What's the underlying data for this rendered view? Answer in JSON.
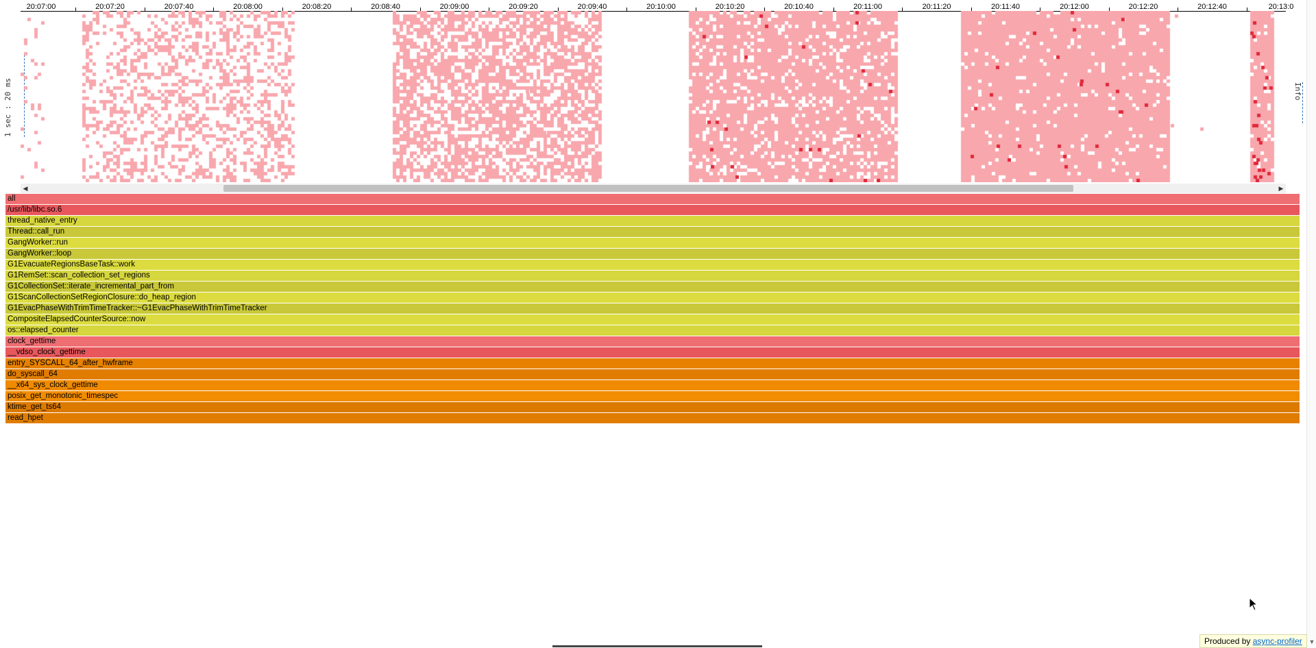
{
  "timeline": {
    "y_axis_label": "1 sec : 20 ms",
    "info_label": "Info",
    "ticks": [
      "20:07:00",
      "20:07:20",
      "20:07:40",
      "20:08:00",
      "20:08:20",
      "20:08:40",
      "20:09:00",
      "20:09:20",
      "20:09:40",
      "20:10:00",
      "20:10:20",
      "20:10:40",
      "20:11:00",
      "20:11:20",
      "20:11:40",
      "20:12:00",
      "20:12:20",
      "20:12:40",
      "20:13:0"
    ],
    "colors": {
      "sample": "#f8a7ad",
      "hot": "#e0283a",
      "axis": "#000000"
    }
  },
  "chart_data": {
    "type": "heatmap",
    "title": "",
    "xlabel": "",
    "ylabel": "1 sec : 20 ms",
    "x_ticks": [
      "20:07:00",
      "20:07:20",
      "20:07:40",
      "20:08:00",
      "20:08:20",
      "20:08:40",
      "20:09:00",
      "20:09:20",
      "20:09:40",
      "20:10:00",
      "20:10:20",
      "20:10:40",
      "20:11:00",
      "20:11:20",
      "20:11:40",
      "20:12:00",
      "20:12:20",
      "20:12:40",
      "20:13:0"
    ],
    "activity_periods": [
      {
        "start": "20:07:00",
        "end": "20:07:06",
        "density": "sparse"
      },
      {
        "start": "20:07:18",
        "end": "20:08:19",
        "density": "medium"
      },
      {
        "start": "20:08:48",
        "end": "20:09:48",
        "density": "dense"
      },
      {
        "start": "20:10:14",
        "end": "20:11:14",
        "density": "very-dense"
      },
      {
        "start": "20:11:33",
        "end": "20:12:33",
        "density": "full"
      },
      {
        "start": "20:12:57",
        "end": "20:13:03",
        "density": "full"
      }
    ]
  },
  "flamegraph": {
    "frames": [
      {
        "name": "all",
        "color": "#ef6e72"
      },
      {
        "name": "/usr/lib/libc.so.6",
        "color": "#e8575c"
      },
      {
        "name": "thread_native_entry",
        "color": "#d6d63e"
      },
      {
        "name": "Thread::call_run",
        "color": "#c8c83a"
      },
      {
        "name": "GangWorker::run",
        "color": "#dcdc40"
      },
      {
        "name": "GangWorker::loop",
        "color": "#c8c83a"
      },
      {
        "name": "G1EvacuateRegionsBaseTask::work",
        "color": "#dcdc40"
      },
      {
        "name": "G1RemSet::scan_collection_set_regions",
        "color": "#d6d63e"
      },
      {
        "name": "G1CollectionSet::iterate_incremental_part_from",
        "color": "#c8c83a"
      },
      {
        "name": "G1ScanCollectionSetRegionClosure::do_heap_region",
        "color": "#dcdc40"
      },
      {
        "name": "G1EvacPhaseWithTrimTimeTracker::~G1EvacPhaseWithTrimTimeTracker",
        "color": "#c8c83a"
      },
      {
        "name": "CompositeElapsedCounterSource::now",
        "color": "#dcdc40"
      },
      {
        "name": "os::elapsed_counter",
        "color": "#d6d63e"
      },
      {
        "name": "clock_gettime",
        "color": "#ef6e72"
      },
      {
        "name": "__vdso_clock_gettime",
        "color": "#e8575c"
      },
      {
        "name": "entry_SYSCALL_64_after_hwframe",
        "color": "#e68200"
      },
      {
        "name": "do_syscall_64",
        "color": "#e07d00"
      },
      {
        "name": "__x64_sys_clock_gettime",
        "color": "#f08a00"
      },
      {
        "name": "posix_get_monotonic_timespec",
        "color": "#f28c00"
      },
      {
        "name": "ktime_get_ts64",
        "color": "#dc7a00"
      },
      {
        "name": "read_hpet",
        "color": "#e07d00"
      }
    ]
  },
  "footer": {
    "prefix": "Produced by ",
    "link_text": "async-profiler"
  },
  "icons": {
    "scroll_left": "triangle-left-icon",
    "scroll_right": "triangle-right-icon",
    "scroll_down": "triangle-down-icon"
  }
}
